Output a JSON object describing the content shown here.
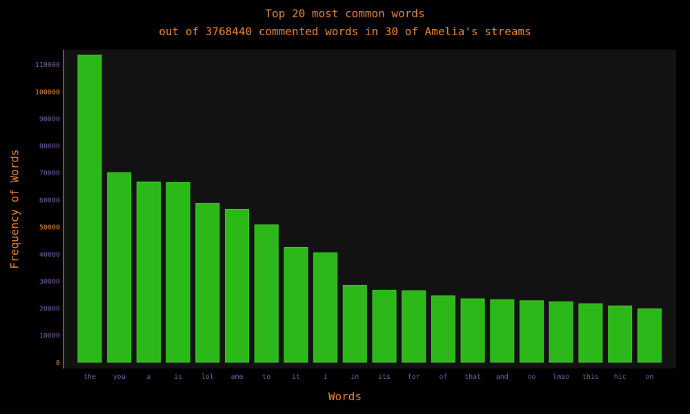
{
  "chart_data": {
    "type": "bar",
    "title": "Top 20 most common words",
    "subtitle": "out of 3768440 commented words in 30 of Amelia's streams",
    "xlabel": "Words",
    "ylabel": "Frequency of Words",
    "categories": [
      "the",
      "you",
      "a",
      "is",
      "lol",
      "ame",
      "to",
      "it",
      "i",
      "in",
      "its",
      "for",
      "of",
      "that",
      "and",
      "no",
      "lmao",
      "this",
      "hic",
      "on"
    ],
    "values": [
      113300,
      70000,
      66500,
      66300,
      58700,
      56400,
      50700,
      42400,
      40400,
      28400,
      26600,
      26400,
      24500,
      23400,
      23100,
      22700,
      22300,
      21600,
      20800,
      19700
    ],
    "ylim": [
      0,
      115000
    ],
    "yticks": [
      0,
      10000,
      20000,
      30000,
      40000,
      50000,
      60000,
      70000,
      80000,
      90000,
      100000,
      110000
    ],
    "highlight_ticks": [
      0,
      50000,
      100000
    ],
    "grid": false,
    "colors": {
      "bar": "#2db81a",
      "bar_edge": "#3fd42a",
      "plot_bg": "#121212",
      "page_bg": "#000000",
      "text": "#f08a3a",
      "tick_text": "#7a5fa8",
      "axis": "#c0703a"
    }
  }
}
